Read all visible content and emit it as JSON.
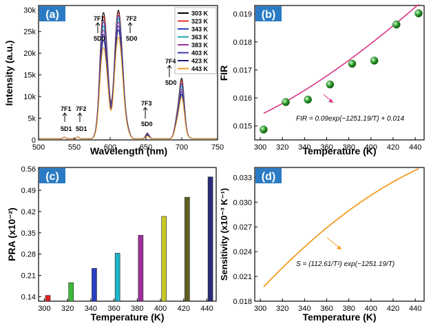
{
  "chart_data": [
    {
      "panel": "(a)",
      "type": "line",
      "xlabel": "Wavelength (nm)",
      "ylabel": "Intensity (a.u.)",
      "xlim": [
        500,
        750
      ],
      "ylim": [
        0,
        31000
      ],
      "xticks": [
        "500",
        "550",
        "600",
        "650",
        "700",
        "750"
      ],
      "yticks": [
        "0",
        "5k",
        "10k",
        "15k",
        "20k",
        "25k",
        "30k"
      ],
      "legend": {
        "placement": "top-right",
        "entries": [
          "303 K",
          "323 K",
          "343 K",
          "363 K",
          "383 K",
          "403 K",
          "423 K",
          "443 K"
        ]
      },
      "colors": [
        "#000000",
        "#e0302a",
        "#2a3fbf",
        "#1aa6a6",
        "#a0309e",
        "#3a3aa6",
        "#1c1c7a",
        "#f29c20"
      ],
      "peak_x": [
        591,
        612,
        700
      ],
      "series": [
        {
          "name": "303 K",
          "peaks": [
            28800,
            29100,
            13800
          ]
        },
        {
          "name": "323 K",
          "peaks": [
            28000,
            28600,
            13200
          ]
        },
        {
          "name": "343 K",
          "peaks": [
            26800,
            28000,
            12600
          ]
        },
        {
          "name": "363 K",
          "peaks": [
            25800,
            27300,
            12000
          ]
        },
        {
          "name": "383 K",
          "peaks": [
            24900,
            26600,
            11400
          ]
        },
        {
          "name": "403 K",
          "peaks": [
            23900,
            25700,
            10800
          ]
        },
        {
          "name": "423 K",
          "peaks": [
            22600,
            24800,
            10200
          ]
        },
        {
          "name": "443 K",
          "peaks": [
            20900,
            23200,
            9600
          ]
        }
      ],
      "annotations": {
        "f1_top": "7F1",
        "d0_1": "5D0",
        "f2_top": "7F2",
        "d0_2": "5D0",
        "f4_top": "7F4",
        "d0_4": "5D0",
        "f3_top": "7F3",
        "d0_3": "5D0",
        "small_f1": "7F1",
        "small_d1a": "5D1",
        "small_f2": "7F2",
        "small_d1b": "5D1"
      }
    },
    {
      "panel": "(b)",
      "type": "scatter",
      "xlabel": "Temperature (K)",
      "ylabel": "FIR",
      "xlim": [
        295,
        448
      ],
      "ylim": [
        0.0145,
        0.0193
      ],
      "xticks": [
        "300",
        "320",
        "340",
        "360",
        "380",
        "400",
        "420",
        "440"
      ],
      "yticks": [
        "0.015",
        "0.016",
        "0.017",
        "0.018",
        "0.019"
      ],
      "points": {
        "x": [
          303,
          323,
          343,
          363,
          383,
          403,
          423,
          443
        ],
        "y": [
          0.01487,
          0.01585,
          0.01594,
          0.01648,
          0.01722,
          0.01733,
          0.01862,
          0.01902
        ]
      },
      "fit": {
        "formula": "FIR = 0.09exp(−1251.19/T) + 0.014",
        "a": 0.09,
        "b": 1251.19,
        "c": 0.014
      },
      "point_color": "#2ea02e",
      "fit_color": "#d63384"
    },
    {
      "panel": "(c)",
      "type": "bar",
      "xlabel": "Temperature (K)",
      "ylabel": "PRA (x10⁻²)",
      "ylim": [
        0.125,
        0.565
      ],
      "xticks": [
        "300",
        "320",
        "340",
        "360",
        "380",
        "400",
        "420",
        "440"
      ],
      "yticks": [
        "0.14",
        "0.21",
        "0.28",
        "0.35",
        "0.42",
        "0.49",
        "0.56"
      ],
      "categories": [
        303,
        323,
        343,
        363,
        383,
        403,
        423,
        443
      ],
      "values": [
        0.144,
        0.186,
        0.233,
        0.283,
        0.342,
        0.404,
        0.467,
        0.534
      ],
      "colors": [
        "#e02020",
        "#3cb83c",
        "#2a3fbf",
        "#20b4c8",
        "#a0309e",
        "#c8c828",
        "#606020",
        "#2a2a7a"
      ]
    },
    {
      "panel": "(d)",
      "type": "line",
      "xlabel": "Temperature (K)",
      "ylabel": "Sensitivity (x10⁻³ K⁻¹)",
      "xlim": [
        295,
        448
      ],
      "ylim": [
        0.018,
        0.0342
      ],
      "xticks": [
        "300",
        "320",
        "340",
        "360",
        "380",
        "400",
        "420",
        "440"
      ],
      "yticks": [
        "0.018",
        "0.021",
        "0.024",
        "0.027",
        "0.030",
        "0.033"
      ],
      "curve": {
        "formula": "S = (112.61/T²) exp(−1251.19/T)",
        "a": 112.61,
        "b": 1251.19,
        "x_start": 303,
        "x_end": 443
      },
      "line_color": "#f29c20"
    }
  ]
}
